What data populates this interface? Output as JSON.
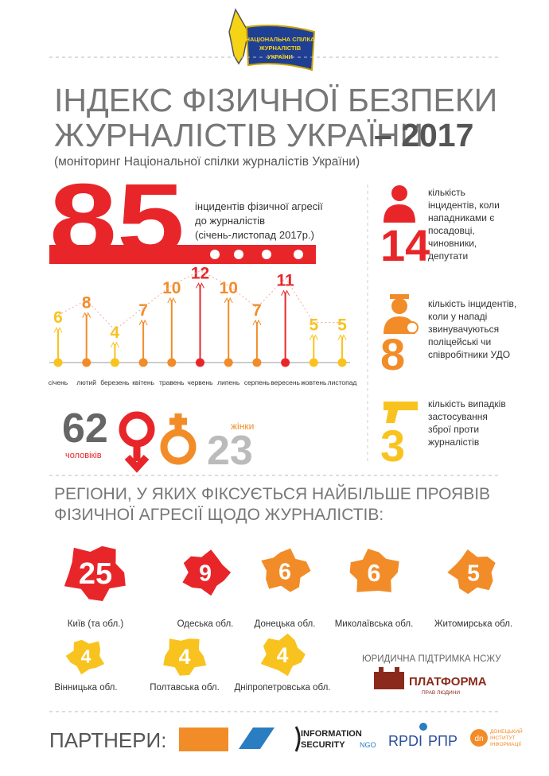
{
  "logo": [
    "НАЦІОНАЛЬНА СПІЛКА",
    "ЖУРНАЛІСТІВ",
    "УКРАЇНИ"
  ],
  "title": [
    "ІНДЕКС ФІЗИЧНОЇ БЕЗПЕКИ",
    "ЖУРНАЛІСТІВ УКРАЇНИ"
  ],
  "title_year": "– 2017",
  "subtitle": "(моніторинг Національної спілки журналістів України)",
  "total": {
    "value": 85,
    "text": [
      "інцидентів фізичної агресії",
      "до журналістів",
      "(січень-листопад 2017р.)"
    ]
  },
  "monthly": {
    "categories": [
      "січень",
      "лютий",
      "березень",
      "квітень",
      "травень",
      "червень",
      "липень",
      "серпень",
      "вересень",
      "жовтень",
      "листопад"
    ],
    "values": [
      6,
      8,
      4,
      7,
      10,
      12,
      10,
      7,
      11,
      5,
      5
    ],
    "colors": [
      "#f9c31f",
      "#f28c28",
      "#f9c31f",
      "#f28c28",
      "#f28c28",
      "#e8262a",
      "#f28c28",
      "#f28c28",
      "#e8262a",
      "#f9c31f",
      "#f9c31f"
    ]
  },
  "gender": {
    "men": {
      "value": 62,
      "label": "чоловіків"
    },
    "women": {
      "value": 23,
      "label": "жінки"
    }
  },
  "stats": [
    {
      "value": 14,
      "color": "#e8262a",
      "text": [
        "кількість",
        "інцидентів, коли",
        "нападниками є",
        "посадовці,",
        "чиновники,",
        "депутати"
      ]
    },
    {
      "value": 8,
      "color": "#f28c28",
      "text": [
        "кількість інцидентів,",
        "коли у нападі",
        "звинувачуються",
        "поліцейські чи",
        "співробітники УДО"
      ]
    },
    {
      "value": 3,
      "color": "#f9c31f",
      "text": [
        "кількість випадків",
        "застосування",
        "зброї проти",
        "журналістів"
      ]
    }
  ],
  "regions_title": [
    "РЕГІОНИ, У ЯКИХ ФІКСУЄТЬСЯ НАЙБІЛЬШЕ ПРОЯВІВ",
    "ФІЗИЧНОЇ АГРЕСІЇ ЩОДО ЖУРНАЛІСТІВ:"
  ],
  "regions": [
    {
      "name": "Київ (та обл.)",
      "value": 25,
      "color": "#e8262a"
    },
    {
      "name": "Одеська обл.",
      "value": 9,
      "color": "#e8262a"
    },
    {
      "name": "Донецька обл.",
      "value": 6,
      "color": "#f28c28"
    },
    {
      "name": "Миколаївська обл.",
      "value": 6,
      "color": "#f28c28"
    },
    {
      "name": "Житомирська обл.",
      "value": 5,
      "color": "#f28c28"
    },
    {
      "name": "Вінницька обл.",
      "value": 4,
      "color": "#f9c31f"
    },
    {
      "name": "Полтавська обл.",
      "value": 4,
      "color": "#f9c31f"
    },
    {
      "name": "Дніпропетровська обл.",
      "value": 4,
      "color": "#f9c31f"
    }
  ],
  "legal": {
    "title": "ЮРИДИЧНА ПІДТРИМКА НСЖУ",
    "name": "ПЛАТФОРМА",
    "sub": "ПРАВ ЛЮДИНИ"
  },
  "partners": {
    "title": "ПАРТНЕРИ:",
    "info_security": [
      "INFORMATION",
      "SECURITY"
    ],
    "ngo": "NGO",
    "rpdi": "RPDI",
    "rpr": "РПР",
    "dn": "dn",
    "dii": [
      "ДОНЕЦЬКИЙ",
      "ІНСТИТУТ",
      "ІНФОРМАЦІЇ"
    ]
  }
}
